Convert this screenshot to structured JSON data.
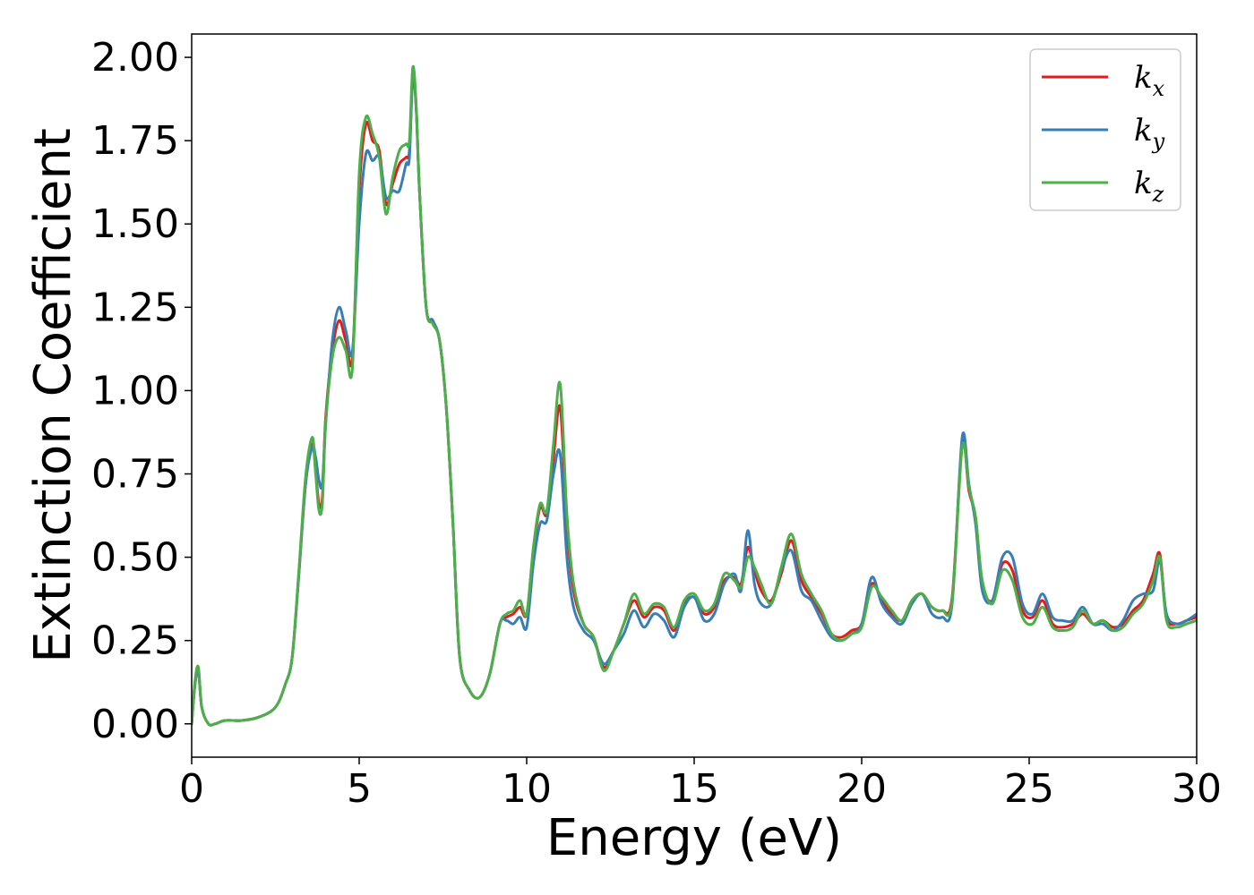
{
  "chart_data": {
    "type": "line",
    "xlabel": "Energy (eV)",
    "ylabel": "Extinction Coefficient",
    "xlim": [
      0,
      30
    ],
    "ylim": [
      -0.1,
      2.07
    ],
    "xticks": [
      0,
      5,
      10,
      15,
      20,
      25,
      30
    ],
    "xtick_labels": [
      "0",
      "5",
      "10",
      "15",
      "20",
      "25",
      "30"
    ],
    "yticks": [
      0,
      0.25,
      0.5,
      0.75,
      1.0,
      1.25,
      1.5,
      1.75,
      2.0
    ],
    "ytick_labels": [
      "0.00",
      "0.25",
      "0.50",
      "0.75",
      "1.00",
      "1.25",
      "1.50",
      "1.75",
      "2.00"
    ],
    "grid": false,
    "legend_position": "top-right",
    "x": [
      0,
      0.1,
      0.2,
      0.3,
      0.5,
      0.7,
      1.0,
      1.5,
      2.0,
      2.5,
      2.8,
      3.0,
      3.2,
      3.4,
      3.6,
      3.7,
      3.8,
      3.9,
      4.0,
      4.2,
      4.4,
      4.6,
      4.8,
      5.0,
      5.2,
      5.4,
      5.6,
      5.8,
      6.0,
      6.2,
      6.4,
      6.5,
      6.6,
      6.7,
      6.8,
      7.0,
      7.2,
      7.4,
      7.6,
      7.8,
      8.0,
      8.3,
      8.6,
      8.9,
      9.2,
      9.4,
      9.6,
      9.8,
      10.0,
      10.2,
      10.4,
      10.6,
      10.8,
      11.0,
      11.2,
      11.4,
      11.7,
      12.0,
      12.3,
      12.6,
      12.9,
      13.2,
      13.5,
      13.8,
      14.1,
      14.4,
      14.7,
      15.0,
      15.3,
      15.6,
      15.9,
      16.2,
      16.4,
      16.6,
      16.8,
      17.0,
      17.3,
      17.6,
      17.9,
      18.2,
      18.5,
      18.8,
      19.1,
      19.4,
      19.7,
      20.0,
      20.3,
      20.6,
      20.9,
      21.2,
      21.5,
      21.8,
      22.1,
      22.4,
      22.7,
      23.0,
      23.2,
      23.4,
      23.6,
      23.9,
      24.2,
      24.5,
      24.8,
      25.1,
      25.4,
      25.7,
      26.0,
      26.3,
      26.6,
      26.9,
      27.2,
      27.5,
      27.8,
      28.1,
      28.4,
      28.7,
      28.9,
      29.1,
      29.4,
      29.7,
      30.0
    ],
    "series": [
      {
        "name": "k_x",
        "label_base": "k",
        "label_sub": "x",
        "color": "#e41a1c",
        "values": [
          0.0,
          0.12,
          0.16,
          0.05,
          0.0,
          0.0,
          0.01,
          0.01,
          0.02,
          0.05,
          0.12,
          0.2,
          0.45,
          0.72,
          0.84,
          0.76,
          0.66,
          0.68,
          0.92,
          1.12,
          1.21,
          1.15,
          1.1,
          1.6,
          1.8,
          1.75,
          1.72,
          1.56,
          1.62,
          1.68,
          1.7,
          1.72,
          1.94,
          1.85,
          1.6,
          1.25,
          1.2,
          1.15,
          0.95,
          0.6,
          0.2,
          0.1,
          0.08,
          0.15,
          0.3,
          0.32,
          0.33,
          0.35,
          0.33,
          0.52,
          0.65,
          0.63,
          0.8,
          0.95,
          0.6,
          0.4,
          0.3,
          0.26,
          0.17,
          0.22,
          0.3,
          0.37,
          0.32,
          0.35,
          0.34,
          0.28,
          0.36,
          0.38,
          0.33,
          0.35,
          0.43,
          0.44,
          0.42,
          0.53,
          0.46,
          0.4,
          0.37,
          0.45,
          0.55,
          0.43,
          0.38,
          0.33,
          0.27,
          0.26,
          0.28,
          0.3,
          0.42,
          0.37,
          0.33,
          0.31,
          0.37,
          0.39,
          0.35,
          0.34,
          0.38,
          0.84,
          0.7,
          0.62,
          0.42,
          0.37,
          0.48,
          0.46,
          0.34,
          0.32,
          0.37,
          0.3,
          0.29,
          0.3,
          0.33,
          0.3,
          0.31,
          0.29,
          0.3,
          0.34,
          0.37,
          0.45,
          0.51,
          0.32,
          0.3,
          0.31,
          0.32
        ]
      },
      {
        "name": "k_y",
        "label_base": "k",
        "label_sub": "y",
        "color": "#377eb8",
        "values": [
          0.0,
          0.12,
          0.16,
          0.05,
          0.0,
          0.0,
          0.01,
          0.01,
          0.02,
          0.05,
          0.12,
          0.2,
          0.45,
          0.72,
          0.83,
          0.8,
          0.73,
          0.72,
          0.9,
          1.15,
          1.25,
          1.18,
          1.12,
          1.5,
          1.71,
          1.69,
          1.7,
          1.58,
          1.6,
          1.6,
          1.68,
          1.7,
          1.96,
          1.85,
          1.6,
          1.25,
          1.21,
          1.15,
          0.95,
          0.6,
          0.2,
          0.1,
          0.08,
          0.15,
          0.3,
          0.31,
          0.3,
          0.32,
          0.29,
          0.48,
          0.6,
          0.61,
          0.75,
          0.81,
          0.5,
          0.35,
          0.28,
          0.25,
          0.18,
          0.22,
          0.27,
          0.34,
          0.29,
          0.33,
          0.31,
          0.26,
          0.35,
          0.38,
          0.31,
          0.33,
          0.42,
          0.45,
          0.4,
          0.58,
          0.42,
          0.36,
          0.36,
          0.46,
          0.52,
          0.4,
          0.37,
          0.31,
          0.26,
          0.25,
          0.27,
          0.3,
          0.44,
          0.36,
          0.32,
          0.3,
          0.36,
          0.39,
          0.33,
          0.32,
          0.36,
          0.86,
          0.72,
          0.6,
          0.4,
          0.37,
          0.5,
          0.5,
          0.36,
          0.33,
          0.39,
          0.32,
          0.31,
          0.31,
          0.35,
          0.3,
          0.3,
          0.28,
          0.31,
          0.37,
          0.39,
          0.4,
          0.49,
          0.33,
          0.3,
          0.31,
          0.33
        ]
      },
      {
        "name": "k_z",
        "label_base": "k",
        "label_sub": "z",
        "color": "#4daf4a",
        "values": [
          0.0,
          0.13,
          0.17,
          0.05,
          0.0,
          0.0,
          0.01,
          0.01,
          0.02,
          0.05,
          0.12,
          0.2,
          0.46,
          0.74,
          0.86,
          0.75,
          0.64,
          0.66,
          0.9,
          1.1,
          1.16,
          1.12,
          1.07,
          1.65,
          1.82,
          1.77,
          1.7,
          1.53,
          1.64,
          1.72,
          1.74,
          1.75,
          1.97,
          1.86,
          1.6,
          1.25,
          1.2,
          1.15,
          0.95,
          0.6,
          0.2,
          0.1,
          0.08,
          0.15,
          0.3,
          0.33,
          0.34,
          0.37,
          0.33,
          0.53,
          0.66,
          0.64,
          0.84,
          1.02,
          0.63,
          0.42,
          0.3,
          0.26,
          0.16,
          0.22,
          0.3,
          0.39,
          0.33,
          0.36,
          0.35,
          0.29,
          0.37,
          0.39,
          0.34,
          0.36,
          0.45,
          0.43,
          0.41,
          0.5,
          0.47,
          0.42,
          0.36,
          0.47,
          0.57,
          0.45,
          0.39,
          0.34,
          0.27,
          0.25,
          0.27,
          0.29,
          0.41,
          0.38,
          0.34,
          0.31,
          0.37,
          0.39,
          0.35,
          0.34,
          0.37,
          0.83,
          0.71,
          0.62,
          0.43,
          0.36,
          0.46,
          0.43,
          0.32,
          0.3,
          0.35,
          0.29,
          0.28,
          0.29,
          0.34,
          0.3,
          0.31,
          0.28,
          0.29,
          0.33,
          0.36,
          0.43,
          0.5,
          0.31,
          0.29,
          0.3,
          0.31
        ]
      }
    ]
  }
}
